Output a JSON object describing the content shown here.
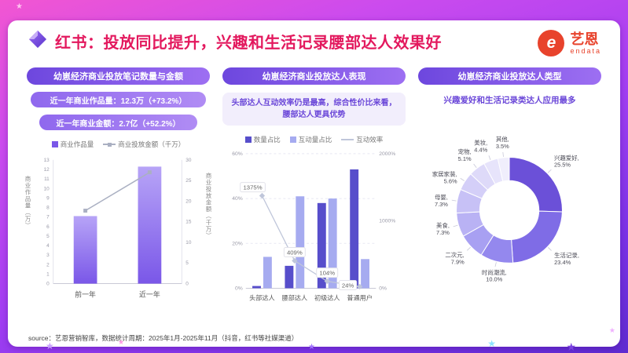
{
  "theme": {
    "title_color": "#e3195e",
    "header_pill_from": "#6d47de",
    "header_pill_to": "#9d6ff2",
    "accent_purple": "#7a57e8",
    "logo_color": "#e8432c"
  },
  "slide": {
    "title": "红书：投放同比提升，兴趣和生活记录腰部达人效果好",
    "logo": {
      "mark": "e",
      "cn": "艺恩",
      "en": "endata"
    },
    "source": "source：艺恩营销智库，数据统计周期：2025年1月-2025年11月（抖音，红书等社媒渠道）"
  },
  "panels": [
    {
      "header": "幼崽经济商业投放笔记数量与金额",
      "stat_pills": [
        "近一年商业作品量：12.3万（+73.2%）",
        "近一年商业金额：2.7亿（+52.2%）"
      ],
      "legend": [
        "商业作品量",
        "商业投放金额（千万）"
      ]
    },
    {
      "header": "幼崽经济商业投放达人表现",
      "insight": "头部达人互动效率仍是最高，综合性价比来看，腰部达人更具优势",
      "legend": [
        "数量占比",
        "互动量占比",
        "互动效率"
      ]
    },
    {
      "header": "幼崽经济商业投放达人类型",
      "insight": "兴趣爱好和生活记录类达人应用最多"
    }
  ],
  "chart_data": [
    {
      "type": "bar",
      "title": "幼崽经济商业投放笔记数量与金额",
      "categories": [
        "前一年",
        "近一年"
      ],
      "series": [
        {
          "name": "商业作品量",
          "kind": "bar",
          "axis": "left",
          "values": [
            7.1,
            12.3
          ],
          "color_top": "#b7a4f7",
          "color_bottom": "#7a57e8"
        },
        {
          "name": "商业投放金额（千万）",
          "kind": "line",
          "axis": "right",
          "values": [
            17.7,
            27
          ],
          "color": "#aab0c2"
        }
      ],
      "left_axis": {
        "title": "商业作品量（万）",
        "min": 0,
        "max": 13,
        "step": 1
      },
      "right_axis": {
        "title": "商业投放金额（千万）",
        "min": 0,
        "max": 30,
        "step": 5
      },
      "legend_position": "top"
    },
    {
      "type": "bar",
      "title": "幼崽经济商业投放达人表现",
      "categories": [
        "头部达人",
        "腰部达人",
        "初级达人",
        "普通用户"
      ],
      "series": [
        {
          "name": "数量占比",
          "kind": "bar",
          "axis": "left",
          "values": [
            1,
            10,
            38,
            53
          ],
          "color": "#574ecb"
        },
        {
          "name": "互动量占比",
          "kind": "bar",
          "axis": "left",
          "values": [
            14,
            41,
            40,
            13
          ],
          "color": "#a6abf0"
        },
        {
          "name": "互动效率",
          "kind": "line",
          "axis": "right",
          "values": [
            1375,
            409,
            104,
            24
          ],
          "labels": [
            "1375%",
            "409%",
            "104%",
            "24%"
          ],
          "color": "#bfc6da"
        }
      ],
      "left_axis": {
        "ticks": [
          0,
          20,
          40,
          60
        ],
        "max": 60,
        "unit": "%"
      },
      "right_axis": {
        "ticks": [
          0,
          1000,
          2000
        ],
        "max": 2000,
        "unit": "%"
      },
      "grid": "horizontal-dashed",
      "legend_position": "top"
    },
    {
      "type": "pie",
      "donut": true,
      "title": "幼崽经济商业投放达人类型",
      "labels": [
        "兴趣爱好",
        "生活记录",
        "时尚潮流",
        "二次元",
        "美食",
        "母婴",
        "家居家装",
        "宠物",
        "美妆",
        "其他"
      ],
      "values": [
        25.5,
        23.4,
        10.0,
        7.9,
        7.3,
        7.3,
        5.6,
        5.1,
        4.4,
        3.5
      ],
      "colors": [
        "#6b50d8",
        "#7f6ce6",
        "#9488ee",
        "#a8a0f2",
        "#b9b2f4",
        "#c7c1f6",
        "#d4cff8",
        "#dedaf9",
        "#e7e4fb",
        "#f0eefc"
      ]
    }
  ]
}
